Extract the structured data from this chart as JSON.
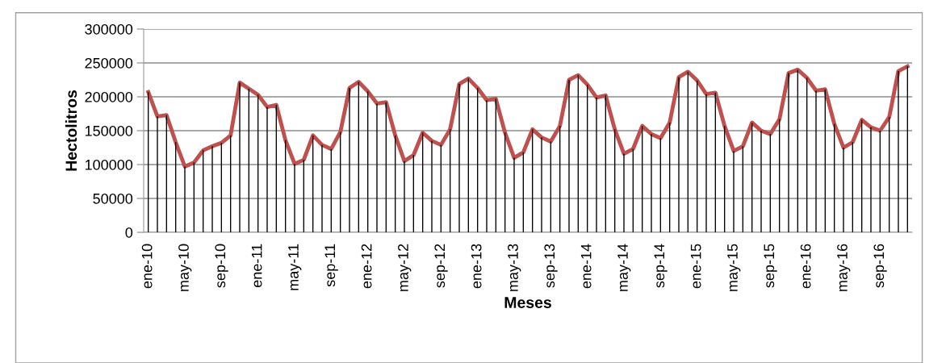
{
  "chart_data": {
    "type": "line",
    "xlabel": "Meses",
    "ylabel": "Hectolitros",
    "categories": [
      "ene-10",
      null,
      null,
      null,
      "may-10",
      null,
      null,
      null,
      "sep-10",
      null,
      null,
      null,
      "ene-11",
      null,
      null,
      null,
      "may-11",
      null,
      null,
      null,
      "sep-11",
      null,
      null,
      null,
      "ene-12",
      null,
      null,
      null,
      "may-12",
      null,
      null,
      null,
      "sep-12",
      null,
      null,
      null,
      "ene-13",
      null,
      null,
      null,
      "may-13",
      null,
      null,
      null,
      "sep-13",
      null,
      null,
      null,
      "ene-14",
      null,
      null,
      null,
      "may-14",
      null,
      null,
      null,
      "sep-14",
      null,
      null,
      null,
      "ene-15",
      null,
      null,
      null,
      "may-15",
      null,
      null,
      null,
      "sep-15",
      null,
      null,
      null,
      "ene-16",
      null,
      null,
      null,
      "may-16",
      null,
      null,
      null,
      "sep-16",
      null,
      null,
      null
    ],
    "series": [
      {
        "type": "bar",
        "color": "#000000",
        "values": [
          207000,
          171000,
          173000,
          133000,
          97000,
          103000,
          121000,
          127000,
          132000,
          143000,
          221000,
          212000,
          203000,
          185000,
          188000,
          136000,
          101000,
          107000,
          143000,
          129000,
          123000,
          148000,
          213000,
          222000,
          208000,
          190000,
          192000,
          143000,
          105000,
          114000,
          147000,
          135000,
          129000,
          152000,
          219000,
          227000,
          213000,
          195000,
          197000,
          147000,
          110000,
          118000,
          152000,
          140000,
          134000,
          157000,
          225000,
          232000,
          218000,
          199000,
          202000,
          152000,
          116000,
          123000,
          157000,
          145000,
          139000,
          162000,
          229000,
          237000,
          224000,
          204000,
          206000,
          157000,
          120000,
          127000,
          162000,
          150000,
          145000,
          167000,
          235000,
          240000,
          228000,
          209000,
          211000,
          160000,
          125000,
          133000,
          166000,
          155000,
          150000,
          170000,
          238000,
          245000
        ]
      },
      {
        "color": "#c0504d",
        "values": [
          207000,
          171000,
          173000,
          133000,
          97000,
          103000,
          121000,
          127000,
          132000,
          143000,
          221000,
          212000,
          203000,
          185000,
          188000,
          136000,
          101000,
          107000,
          143000,
          129000,
          123000,
          148000,
          213000,
          222000,
          208000,
          190000,
          192000,
          143000,
          105000,
          114000,
          147000,
          135000,
          129000,
          152000,
          219000,
          227000,
          213000,
          195000,
          197000,
          147000,
          110000,
          118000,
          152000,
          140000,
          134000,
          157000,
          225000,
          232000,
          218000,
          199000,
          202000,
          152000,
          116000,
          123000,
          157000,
          145000,
          139000,
          162000,
          229000,
          237000,
          224000,
          204000,
          206000,
          157000,
          120000,
          127000,
          162000,
          150000,
          145000,
          167000,
          235000,
          240000,
          228000,
          209000,
          211000,
          160000,
          125000,
          133000,
          166000,
          155000,
          150000,
          170000,
          238000,
          245000
        ]
      }
    ],
    "ylim": [
      0,
      300000
    ],
    "yticks": [
      0,
      50000,
      100000,
      150000,
      200000,
      250000,
      300000
    ],
    "grid": "y",
    "marker": "none",
    "line_style": "solid"
  }
}
